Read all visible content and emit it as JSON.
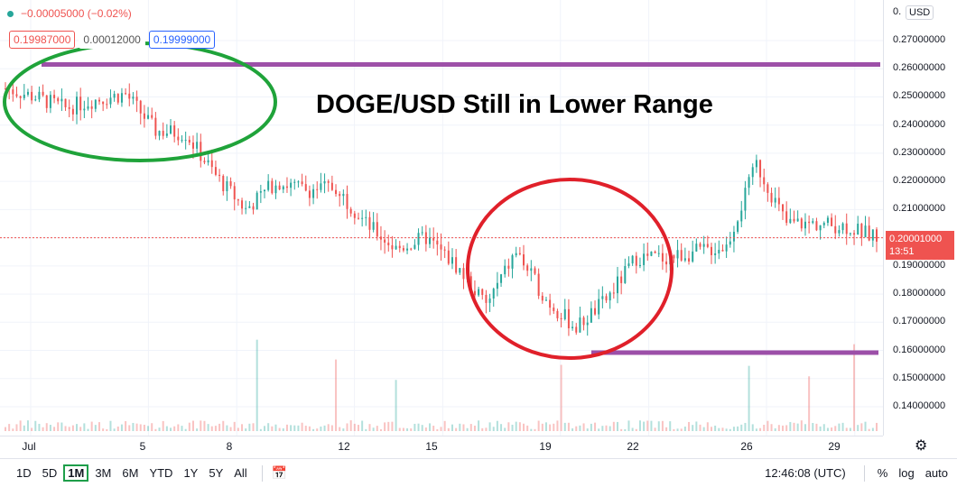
{
  "legend": {
    "change": "−0.00005000 (−0.02%)",
    "bid": "0.19987000",
    "spread": "0.00012000",
    "ask": "0.19999000"
  },
  "headline": "DOGE/USD Still in Lower Range",
  "price_axis": {
    "currency_select": "USD",
    "top_partial": "0.",
    "labels": [
      "0.27000000",
      "0.26000000",
      "0.25000000",
      "0.24000000",
      "0.23000000",
      "0.22000000",
      "0.21000000",
      "0.19000000",
      "0.18000000",
      "0.17000000",
      "0.16000000",
      "0.15000000",
      "0.14000000"
    ],
    "current_price": "0.20001000",
    "countdown": "13:51"
  },
  "time_axis": {
    "labels": [
      "Jul",
      "5",
      "8",
      "12",
      "15",
      "19",
      "22",
      "26",
      "29"
    ]
  },
  "toolbar": {
    "ranges": [
      "1D",
      "5D",
      "1M",
      "3M",
      "6M",
      "YTD",
      "1Y",
      "5Y",
      "All"
    ],
    "active_range": "1M",
    "clock": "12:46:08 (UTC)",
    "percent": "%",
    "log": "log",
    "auto": "auto"
  },
  "colors": {
    "up": "#26a69a",
    "down": "#ef5350",
    "range_line": "#9c4fa8",
    "green_circle": "#1fa33a",
    "red_circle": "#e0202a"
  },
  "chart_data": {
    "type": "candlestick",
    "title": "DOGE/USD Still in Lower Range",
    "ylim": [
      0.135,
      0.275
    ],
    "x_ticks": [
      "Jul",
      "5",
      "8",
      "12",
      "15",
      "19",
      "22",
      "26",
      "29"
    ],
    "price_path": [
      {
        "x": "Jul 1",
        "y": 0.253
      },
      {
        "x": "Jul 2",
        "y": 0.25
      },
      {
        "x": "Jul 3",
        "y": 0.246
      },
      {
        "x": "Jul 4",
        "y": 0.249
      },
      {
        "x": "Jul 5",
        "y": 0.251
      },
      {
        "x": "Jul 6",
        "y": 0.238
      },
      {
        "x": "Jul 7",
        "y": 0.237
      },
      {
        "x": "Jul 8",
        "y": 0.222
      },
      {
        "x": "Jul 9",
        "y": 0.21
      },
      {
        "x": "Jul 10",
        "y": 0.22
      },
      {
        "x": "Jul 11",
        "y": 0.217
      },
      {
        "x": "Jul 12",
        "y": 0.218
      },
      {
        "x": "Jul 13",
        "y": 0.205
      },
      {
        "x": "Jul 14",
        "y": 0.196
      },
      {
        "x": "Jul 15",
        "y": 0.2
      },
      {
        "x": "Jul 16",
        "y": 0.19
      },
      {
        "x": "Jul 17",
        "y": 0.176
      },
      {
        "x": "Jul 18",
        "y": 0.195
      },
      {
        "x": "Jul 19",
        "y": 0.178
      },
      {
        "x": "Jul 20",
        "y": 0.168
      },
      {
        "x": "Jul 21",
        "y": 0.178
      },
      {
        "x": "Jul 22",
        "y": 0.193
      },
      {
        "x": "Jul 23",
        "y": 0.193
      },
      {
        "x": "Jul 24",
        "y": 0.195
      },
      {
        "x": "Jul 25",
        "y": 0.197
      },
      {
        "x": "Jul 26",
        "y": 0.226
      },
      {
        "x": "Jul 27",
        "y": 0.205
      },
      {
        "x": "Jul 28",
        "y": 0.205
      },
      {
        "x": "Jul 29",
        "y": 0.204
      },
      {
        "x": "Jul 30",
        "y": 0.2
      }
    ],
    "current_price": 0.20001,
    "levels": [
      {
        "name": "resistance",
        "value": 0.2615
      },
      {
        "name": "support",
        "value": 0.1592
      }
    ]
  }
}
